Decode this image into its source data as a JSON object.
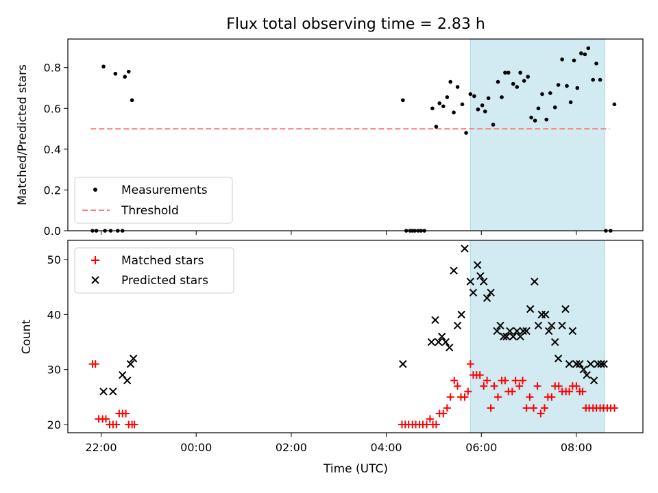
{
  "chart_data": [
    {
      "type": "scatter",
      "title": "Flux total observing time = 2.83 h",
      "xlabel": "",
      "ylabel": "Matched/Predicted stars",
      "xlim": [
        -2.7,
        9.4
      ],
      "ylim": [
        0.0,
        0.94
      ],
      "y_ticks": [
        0.0,
        0.2,
        0.4,
        0.6,
        0.8
      ],
      "y_tick_labels": [
        "0.0",
        "0.2",
        "0.4",
        "0.6",
        "0.8"
      ],
      "x_ticks": [
        -2,
        0,
        2,
        4,
        6,
        8
      ],
      "highlight_span": {
        "x": [
          5.77,
          8.6
        ],
        "color": "#add8e6"
      },
      "threshold": {
        "name": "Threshold",
        "y": 0.5,
        "x": [
          -2.22,
          8.7
        ],
        "color": "#ff7f7f",
        "style": "dashed"
      },
      "series": [
        {
          "name": "Measurements",
          "marker": "dot",
          "color": "#000000",
          "x": [
            -2.18,
            -2.1,
            -1.95,
            -1.92,
            -1.8,
            -1.7,
            -1.65,
            -1.55,
            -1.5,
            -1.42,
            -1.35,
            4.35,
            4.42,
            4.5,
            4.55,
            4.6,
            4.67,
            4.73,
            4.8,
            4.97,
            5.05,
            5.12,
            5.2,
            5.28,
            5.35,
            5.42,
            5.5,
            5.6,
            5.68,
            5.77,
            5.85,
            5.93,
            6.02,
            6.08,
            6.15,
            6.25,
            6.35,
            6.43,
            6.5,
            6.57,
            6.67,
            6.75,
            6.82,
            6.9,
            6.98,
            7.05,
            7.13,
            7.2,
            7.28,
            7.37,
            7.45,
            7.55,
            7.62,
            7.7,
            7.8,
            7.88,
            7.95,
            8.02,
            8.1,
            8.18,
            8.25,
            8.35,
            8.42,
            8.5,
            8.62,
            8.72,
            8.8
          ],
          "y": [
            0.0,
            0.0,
            0.805,
            0.0,
            0.0,
            0.77,
            0.0,
            0.0,
            0.755,
            0.78,
            0.64,
            0.64,
            0.0,
            0.0,
            0.0,
            0.0,
            0.0,
            0.0,
            0.0,
            0.6,
            0.51,
            0.625,
            0.61,
            0.655,
            0.73,
            0.58,
            0.705,
            0.62,
            0.48,
            0.67,
            0.66,
            0.595,
            0.615,
            0.585,
            0.65,
            0.52,
            0.73,
            0.655,
            0.775,
            0.775,
            0.72,
            0.705,
            0.775,
            0.735,
            0.755,
            0.555,
            0.54,
            0.6,
            0.67,
            0.545,
            0.675,
            0.605,
            0.715,
            0.84,
            0.71,
            0.63,
            0.835,
            0.7,
            0.87,
            0.865,
            0.895,
            0.74,
            0.82,
            0.74,
            0.0,
            0.0,
            0.62
          ]
        }
      ],
      "legend": {
        "position": "lower-left",
        "entries": [
          "Measurements",
          "Threshold"
        ]
      }
    },
    {
      "type": "scatter",
      "title": "",
      "xlabel": "Time (UTC)",
      "ylabel": "Count",
      "xlim": [
        -2.7,
        9.4
      ],
      "ylim": [
        18.5,
        53.5
      ],
      "y_ticks": [
        20,
        30,
        40,
        50
      ],
      "y_tick_labels": [
        "20",
        "30",
        "40",
        "50"
      ],
      "x_ticks": [
        -2,
        0,
        2,
        4,
        6,
        8
      ],
      "x_tick_labels": [
        "22:00",
        "00:00",
        "02:00",
        "04:00",
        "06:00",
        "08:00"
      ],
      "highlight_span": {
        "x": [
          5.77,
          8.6
        ],
        "color": "#add8e6"
      },
      "series": [
        {
          "name": "Matched stars",
          "marker": "plus",
          "color": "#ff0000",
          "x": [
            -2.18,
            -2.12,
            -2.05,
            -1.97,
            -1.9,
            -1.82,
            -1.75,
            -1.68,
            -1.62,
            -1.55,
            -1.48,
            -1.42,
            -1.35,
            -1.3,
            4.33,
            4.4,
            4.47,
            4.55,
            4.62,
            4.7,
            4.77,
            4.85,
            4.92,
            4.98,
            5.05,
            5.12,
            5.2,
            5.28,
            5.35,
            5.43,
            5.5,
            5.57,
            5.65,
            5.72,
            5.77,
            5.83,
            5.9,
            5.97,
            6.05,
            6.12,
            6.2,
            6.27,
            6.35,
            6.43,
            6.5,
            6.57,
            6.65,
            6.72,
            6.8,
            6.87,
            6.95,
            7.02,
            7.1,
            7.18,
            7.25,
            7.33,
            7.4,
            7.48,
            7.55,
            7.63,
            7.7,
            7.78,
            7.85,
            7.92,
            8.0,
            8.07,
            8.13,
            8.2,
            8.27,
            8.35,
            8.42,
            8.5,
            8.57,
            8.65,
            8.72,
            8.8
          ],
          "y": [
            31,
            31,
            21,
            21,
            21,
            20,
            20,
            20,
            22,
            22,
            22,
            20,
            20,
            20,
            20,
            20,
            20,
            20,
            20,
            20,
            20,
            20,
            21,
            20,
            20,
            22,
            22,
            23,
            25,
            28,
            27,
            25,
            25,
            26,
            31,
            29,
            29,
            29,
            27,
            28,
            23,
            27,
            25,
            28,
            28,
            26,
            26,
            28,
            27,
            28,
            23,
            25,
            23,
            27,
            22,
            23,
            25,
            25,
            27,
            27,
            26,
            26,
            26,
            27,
            27,
            26,
            26,
            23,
            23,
            23,
            23,
            23,
            23,
            23,
            23,
            23
          ]
        },
        {
          "name": "Predicted stars",
          "marker": "x",
          "color": "#000000",
          "x": [
            -1.95,
            -1.75,
            -1.55,
            -1.45,
            -1.38,
            -1.32,
            4.35,
            4.95,
            5.03,
            5.1,
            5.17,
            5.25,
            5.33,
            5.42,
            5.5,
            5.58,
            5.65,
            5.77,
            5.83,
            5.92,
            5.98,
            6.05,
            6.12,
            6.2,
            6.33,
            6.4,
            6.47,
            6.53,
            6.6,
            6.67,
            6.75,
            6.82,
            6.88,
            6.95,
            7.03,
            7.12,
            7.2,
            7.27,
            7.35,
            7.42,
            7.48,
            7.55,
            7.62,
            7.7,
            7.77,
            7.85,
            7.92,
            8.0,
            8.07,
            8.15,
            8.22,
            8.3,
            8.37,
            8.45,
            8.52,
            8.58
          ],
          "y": [
            26,
            26,
            29,
            28,
            31,
            32,
            31,
            35,
            39,
            35,
            36,
            35,
            34,
            48,
            38,
            40,
            52,
            46,
            44,
            49,
            47,
            46,
            43,
            44,
            37,
            38,
            36,
            36,
            37,
            36,
            37,
            36,
            37,
            37,
            41,
            46,
            38,
            40,
            40,
            37,
            38,
            35,
            32,
            38,
            41,
            31,
            37,
            31,
            31,
            30,
            29,
            31,
            28,
            31,
            31,
            31
          ]
        }
      ],
      "legend": {
        "position": "upper-left",
        "entries": [
          "Matched stars",
          "Predicted stars"
        ]
      }
    }
  ]
}
